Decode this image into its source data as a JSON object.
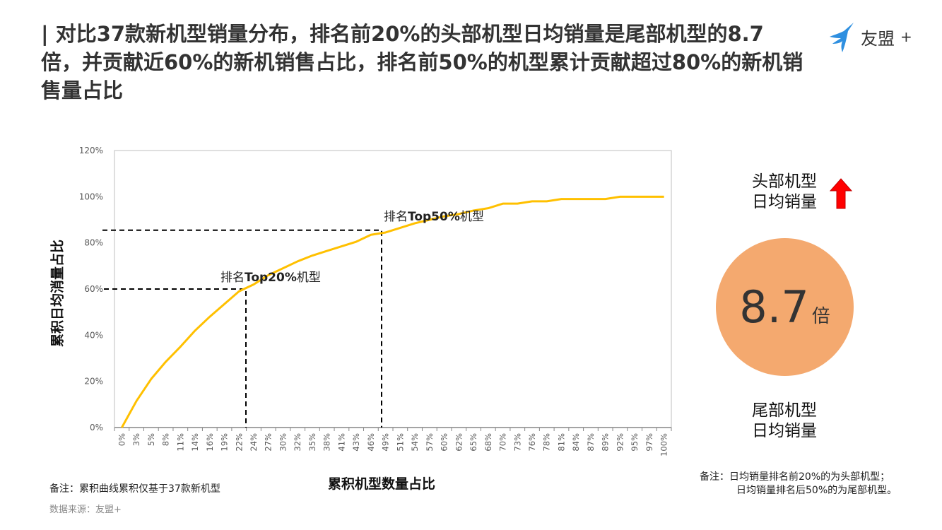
{
  "title": "| 对比37款新机型销量分布，排名前20%的头部机型日均销量是尾部机型的8.7倍，并贡献近60%的新机销售占比，排名前50%的机型累计贡献超过80%的新机销售量占比",
  "logo": {
    "text": "友盟",
    "plus": "+",
    "brand_color": "#2e8fe0"
  },
  "chart_data": {
    "type": "line",
    "xlabel": "累积机型数量占比",
    "ylabel": "累积日均消量占比",
    "categories": [
      "0%",
      "3%",
      "5%",
      "8%",
      "11%",
      "14%",
      "16%",
      "19%",
      "22%",
      "24%",
      "27%",
      "30%",
      "32%",
      "35%",
      "38%",
      "41%",
      "43%",
      "46%",
      "49%",
      "51%",
      "54%",
      "57%",
      "60%",
      "62%",
      "65%",
      "68%",
      "70%",
      "73%",
      "76%",
      "78%",
      "81%",
      "84%",
      "87%",
      "89%",
      "92%",
      "95%",
      "97%",
      "100%"
    ],
    "values": [
      0,
      11.5,
      21,
      28.5,
      35,
      42,
      48,
      53.5,
      59,
      62,
      66,
      69,
      72,
      74.5,
      76.5,
      78.5,
      80.5,
      83.5,
      84.5,
      86.5,
      88.5,
      90,
      91.5,
      92.5,
      94,
      95,
      97,
      97,
      98,
      98,
      99,
      99,
      99,
      99,
      100,
      100,
      100,
      100
    ],
    "ylim": [
      0,
      120
    ],
    "yticks": [
      "0%",
      "20%",
      "40%",
      "60%",
      "80%",
      "100%",
      "120%"
    ],
    "line_color": "#ffc000",
    "grid": false,
    "annotations": [
      {
        "text_prefix": "排名",
        "text_bold": "Top20%",
        "text_suffix": "机型",
        "y": 60
      },
      {
        "text_prefix": "排名",
        "text_bold": "Top50%",
        "text_suffix": "机型",
        "y": 85.5
      }
    ]
  },
  "right_panel": {
    "head_label": [
      "头部机型",
      "日均销量"
    ],
    "tail_label": [
      "尾部机型",
      "日均销量"
    ],
    "ratio": "8.7",
    "ratio_unit": "倍",
    "arrow_color": "#ff0000",
    "circle_color": "#f4a96f"
  },
  "notes": {
    "left": "备注：累积曲线累积仅基于37款新机型",
    "source": "数据来源：友盟+",
    "right_line1": "备注：日均销量排名前20%的为头部机型；",
    "right_line2": "日均销量排名后50%的为尾部机型。"
  }
}
